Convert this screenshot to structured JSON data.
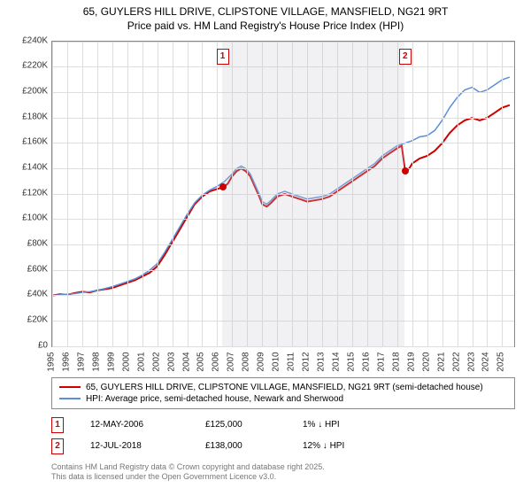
{
  "title_line1": "65, GUYLERS HILL DRIVE, CLIPSTONE VILLAGE, MANSFIELD, NG21 9RT",
  "title_line2": "Price paid vs. HM Land Registry's House Price Index (HPI)",
  "chart": {
    "type": "line",
    "xlim": [
      1995,
      2025.8
    ],
    "ylim": [
      0,
      240000
    ],
    "ytick_step": 20000,
    "yticks_labels": [
      "£0",
      "£20K",
      "£40K",
      "£60K",
      "£80K",
      "£100K",
      "£120K",
      "£140K",
      "£160K",
      "£180K",
      "£200K",
      "£220K",
      "£240K"
    ],
    "xticks": [
      1995,
      1996,
      1997,
      1998,
      1999,
      2000,
      2001,
      2002,
      2003,
      2004,
      2005,
      2006,
      2007,
      2008,
      2009,
      2010,
      2011,
      2012,
      2013,
      2014,
      2015,
      2016,
      2017,
      2018,
      2019,
      2020,
      2021,
      2022,
      2023,
      2024,
      2025
    ],
    "grid_color": "#dddddd",
    "background_color": "#ffffff",
    "border_color": "#888888",
    "shade_color": "rgba(200,200,210,0.25)",
    "shade_ranges": [
      [
        2006.3,
        2018.5
      ]
    ],
    "series": [
      {
        "name": "price_paid",
        "color": "#cc0000",
        "width": 2,
        "data": [
          [
            1995,
            40000
          ],
          [
            1995.5,
            41000
          ],
          [
            1996,
            40500
          ],
          [
            1996.5,
            42000
          ],
          [
            1997,
            43000
          ],
          [
            1997.5,
            42500
          ],
          [
            1998,
            44000
          ],
          [
            1998.5,
            45000
          ],
          [
            1999,
            46000
          ],
          [
            1999.5,
            48000
          ],
          [
            2000,
            50000
          ],
          [
            2000.5,
            52000
          ],
          [
            2001,
            55000
          ],
          [
            2001.5,
            58000
          ],
          [
            2002,
            63000
          ],
          [
            2002.5,
            72000
          ],
          [
            2003,
            82000
          ],
          [
            2003.5,
            92000
          ],
          [
            2004,
            102000
          ],
          [
            2004.5,
            112000
          ],
          [
            2005,
            118000
          ],
          [
            2005.5,
            122000
          ],
          [
            2006,
            124000
          ],
          [
            2006.36,
            125000
          ],
          [
            2006.7,
            128000
          ],
          [
            2007,
            134000
          ],
          [
            2007.3,
            138000
          ],
          [
            2007.6,
            140000
          ],
          [
            2007.9,
            138000
          ],
          [
            2008.2,
            134000
          ],
          [
            2008.5,
            126000
          ],
          [
            2008.8,
            118000
          ],
          [
            2009,
            112000
          ],
          [
            2009.3,
            110000
          ],
          [
            2009.6,
            113000
          ],
          [
            2010,
            118000
          ],
          [
            2010.5,
            120000
          ],
          [
            2011,
            118000
          ],
          [
            2011.5,
            116000
          ],
          [
            2012,
            114000
          ],
          [
            2012.5,
            115000
          ],
          [
            2013,
            116000
          ],
          [
            2013.5,
            118000
          ],
          [
            2014,
            122000
          ],
          [
            2014.5,
            126000
          ],
          [
            2015,
            130000
          ],
          [
            2015.5,
            134000
          ],
          [
            2016,
            138000
          ],
          [
            2016.5,
            142000
          ],
          [
            2017,
            148000
          ],
          [
            2017.5,
            152000
          ],
          [
            2018,
            156000
          ],
          [
            2018.3,
            158000
          ],
          [
            2018.53,
            138000
          ],
          [
            2018.8,
            140000
          ],
          [
            2019,
            144000
          ],
          [
            2019.5,
            148000
          ],
          [
            2020,
            150000
          ],
          [
            2020.5,
            154000
          ],
          [
            2021,
            160000
          ],
          [
            2021.5,
            168000
          ],
          [
            2022,
            174000
          ],
          [
            2022.5,
            178000
          ],
          [
            2023,
            180000
          ],
          [
            2023.5,
            178000
          ],
          [
            2024,
            180000
          ],
          [
            2024.5,
            184000
          ],
          [
            2025,
            188000
          ],
          [
            2025.5,
            190000
          ]
        ]
      },
      {
        "name": "hpi",
        "color": "#5b8fd6",
        "width": 1.5,
        "data": [
          [
            1995,
            40000
          ],
          [
            1995.5,
            40500
          ],
          [
            1996,
            41000
          ],
          [
            1996.5,
            41500
          ],
          [
            1997,
            42500
          ],
          [
            1997.5,
            43000
          ],
          [
            1998,
            44000
          ],
          [
            1998.5,
            45500
          ],
          [
            1999,
            47000
          ],
          [
            1999.5,
            49000
          ],
          [
            2000,
            51000
          ],
          [
            2000.5,
            53000
          ],
          [
            2001,
            56000
          ],
          [
            2001.5,
            60000
          ],
          [
            2002,
            65000
          ],
          [
            2002.5,
            74000
          ],
          [
            2003,
            84000
          ],
          [
            2003.5,
            94000
          ],
          [
            2004,
            104000
          ],
          [
            2004.5,
            113000
          ],
          [
            2005,
            119000
          ],
          [
            2005.5,
            123000
          ],
          [
            2006,
            126000
          ],
          [
            2006.5,
            130000
          ],
          [
            2007,
            136000
          ],
          [
            2007.3,
            140000
          ],
          [
            2007.6,
            142000
          ],
          [
            2007.9,
            140000
          ],
          [
            2008.2,
            136000
          ],
          [
            2008.5,
            128000
          ],
          [
            2008.8,
            120000
          ],
          [
            2009,
            114000
          ],
          [
            2009.3,
            112000
          ],
          [
            2009.6,
            115000
          ],
          [
            2010,
            120000
          ],
          [
            2010.5,
            122000
          ],
          [
            2011,
            120000
          ],
          [
            2011.5,
            118000
          ],
          [
            2012,
            116000
          ],
          [
            2012.5,
            117000
          ],
          [
            2013,
            118000
          ],
          [
            2013.5,
            120000
          ],
          [
            2014,
            124000
          ],
          [
            2014.5,
            128000
          ],
          [
            2015,
            132000
          ],
          [
            2015.5,
            136000
          ],
          [
            2016,
            140000
          ],
          [
            2016.5,
            144000
          ],
          [
            2017,
            150000
          ],
          [
            2017.5,
            154000
          ],
          [
            2018,
            158000
          ],
          [
            2018.5,
            160000
          ],
          [
            2019,
            162000
          ],
          [
            2019.5,
            165000
          ],
          [
            2020,
            166000
          ],
          [
            2020.5,
            170000
          ],
          [
            2021,
            178000
          ],
          [
            2021.5,
            188000
          ],
          [
            2022,
            196000
          ],
          [
            2022.5,
            202000
          ],
          [
            2023,
            204000
          ],
          [
            2023.5,
            200000
          ],
          [
            2024,
            202000
          ],
          [
            2024.5,
            206000
          ],
          [
            2025,
            210000
          ],
          [
            2025.5,
            212000
          ]
        ]
      }
    ],
    "sale_markers": [
      {
        "label": "1",
        "x": 2006.36,
        "y": 125000
      },
      {
        "label": "2",
        "x": 2018.53,
        "y": 138000
      }
    ]
  },
  "legend": {
    "items": [
      {
        "color": "#cc0000",
        "width": 2.5,
        "label": "65, GUYLERS HILL DRIVE, CLIPSTONE VILLAGE, MANSFIELD, NG21 9RT (semi-detached house)"
      },
      {
        "color": "#5b8fd6",
        "width": 2,
        "label": "HPI: Average price, semi-detached house, Newark and Sherwood"
      }
    ]
  },
  "sales": [
    {
      "marker": "1",
      "date": "12-MAY-2006",
      "price": "£125,000",
      "hpi": "1% ↓ HPI"
    },
    {
      "marker": "2",
      "date": "12-JUL-2018",
      "price": "£138,000",
      "hpi": "12% ↓ HPI"
    }
  ],
  "footer_line1": "Contains HM Land Registry data © Crown copyright and database right 2025.",
  "footer_line2": "This data is licensed under the Open Government Licence v3.0."
}
